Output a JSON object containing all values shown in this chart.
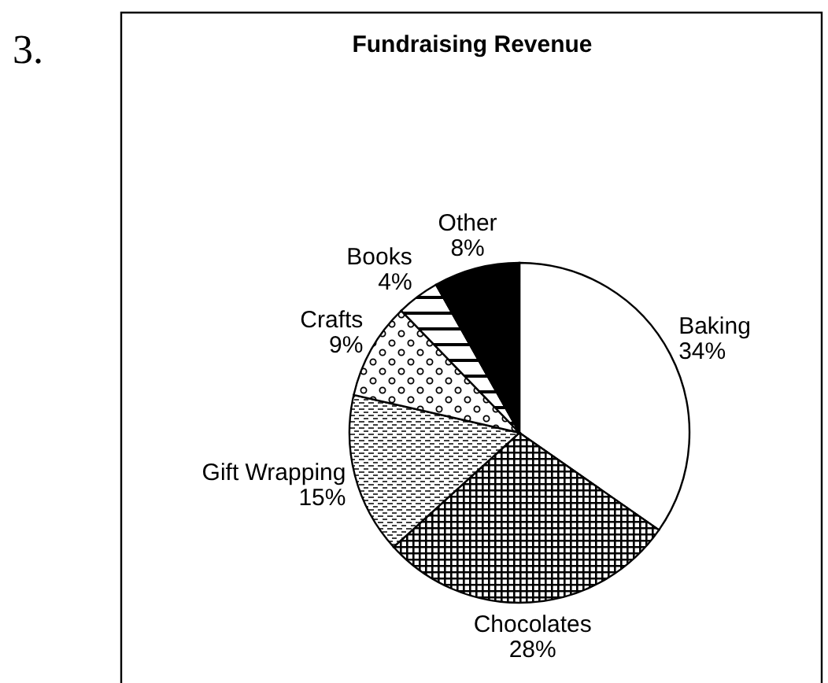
{
  "chart_data": {
    "type": "pie",
    "title": "Fundraising Revenue",
    "categories": [
      "Baking",
      "Chocolates",
      "Gift Wrapping",
      "Crafts",
      "Books",
      "Other"
    ],
    "values": [
      34,
      28,
      15,
      9,
      4,
      8
    ],
    "colors": [
      "#ffffff",
      "#000000",
      "#000000",
      "#000000",
      "#000000",
      "#000000"
    ],
    "value_labels": [
      "34%",
      "28%",
      "15%",
      "9%",
      "4%",
      "8%"
    ],
    "annotations": [
      "3."
    ]
  }
}
